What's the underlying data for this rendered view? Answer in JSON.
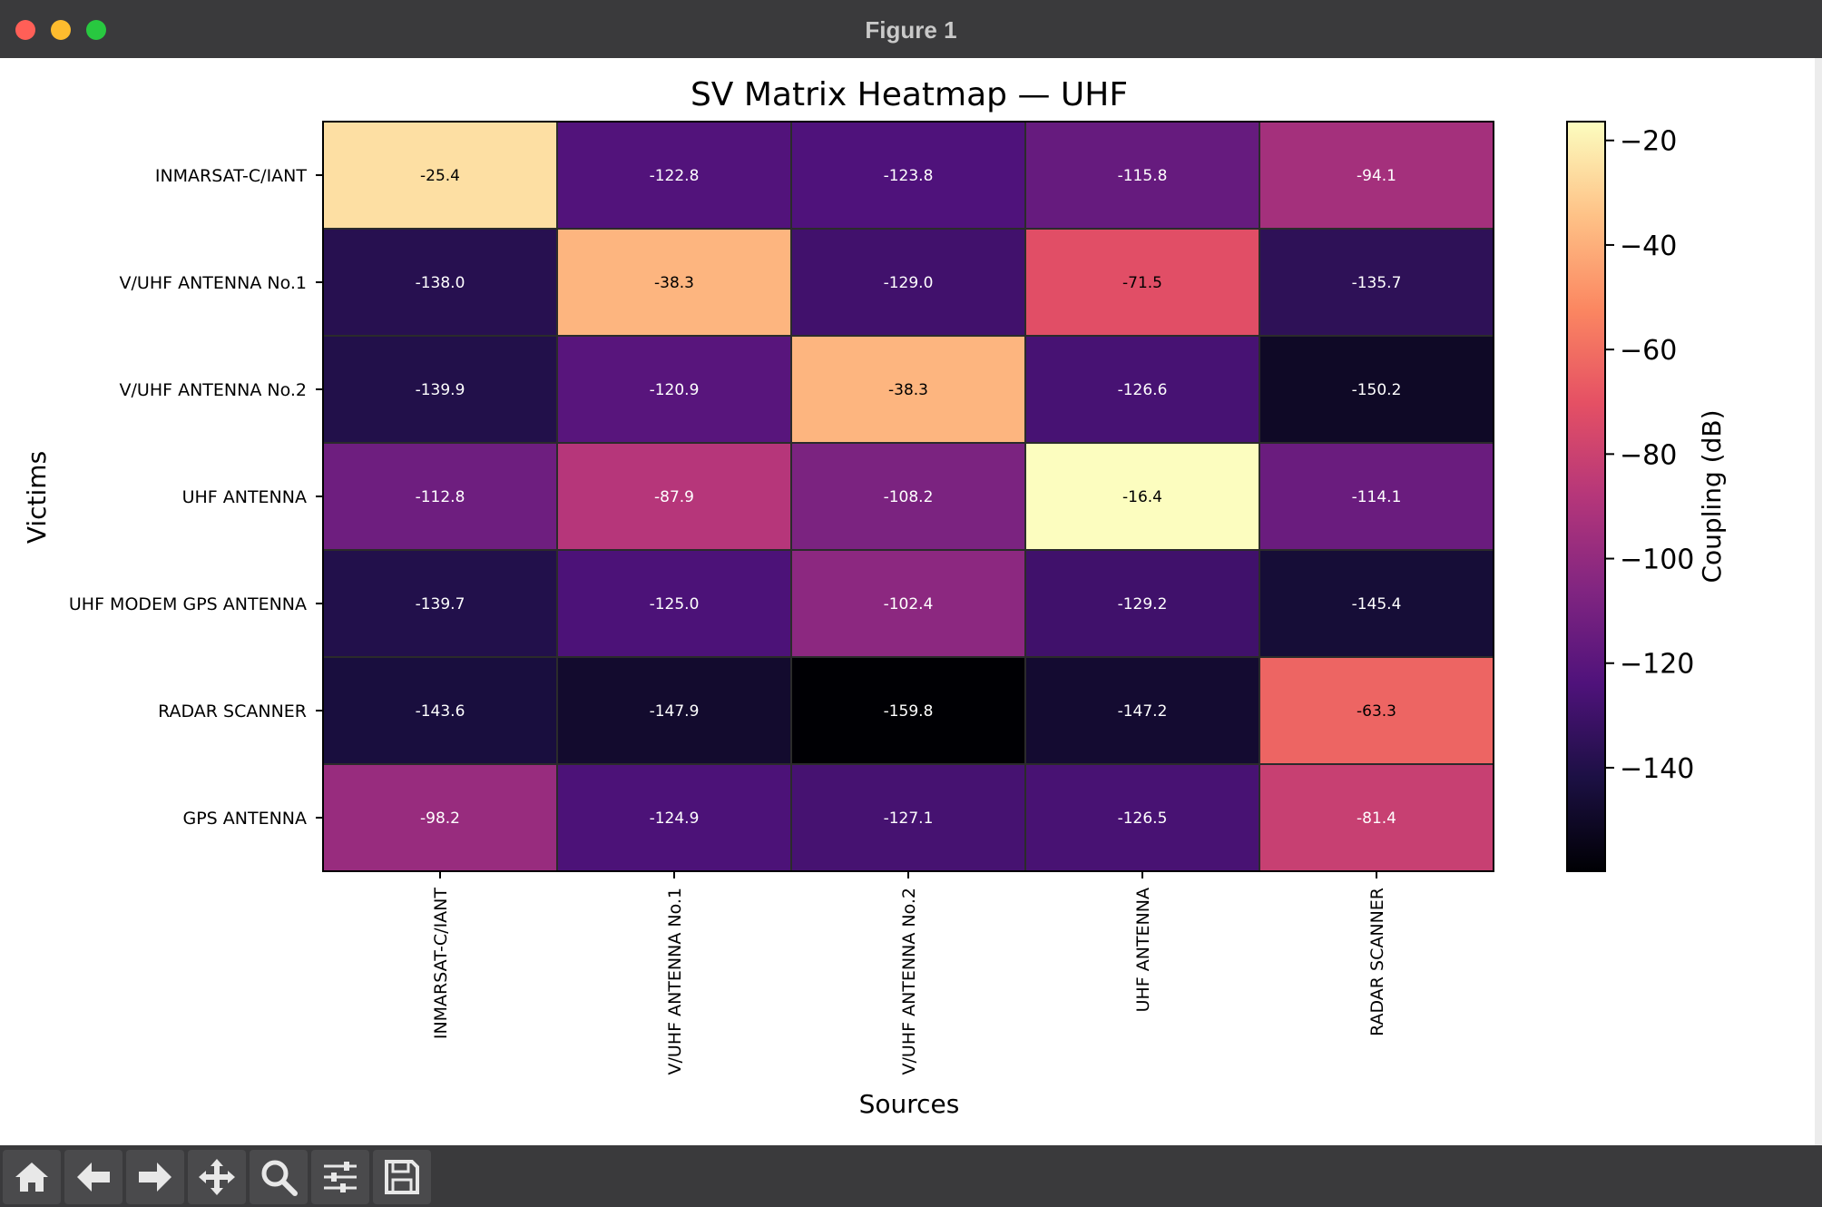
{
  "window": {
    "title": "Figure 1"
  },
  "toolbar": {
    "buttons": [
      {
        "name": "home-button",
        "icon": "home-icon"
      },
      {
        "name": "back-button",
        "icon": "arrow-left-icon"
      },
      {
        "name": "forward-button",
        "icon": "arrow-right-icon"
      },
      {
        "name": "pan-button",
        "icon": "move-icon"
      },
      {
        "name": "zoom-button",
        "icon": "magnifier-icon"
      },
      {
        "name": "configure-subplots-button",
        "icon": "sliders-icon"
      },
      {
        "name": "save-button",
        "icon": "floppy-disk-icon"
      }
    ]
  },
  "chart_data": {
    "type": "heatmap",
    "title": "SV Matrix Heatmap — UHF",
    "xlabel": "Sources",
    "ylabel": "Victims",
    "x_categories": [
      "INMARSAT-C/IANT",
      "V/UHF ANTENNA No.1",
      "V/UHF ANTENNA No.2",
      "UHF ANTENNA",
      "RADAR SCANNER"
    ],
    "y_categories": [
      "INMARSAT-C/IANT",
      "V/UHF ANTENNA No.1",
      "V/UHF ANTENNA No.2",
      "UHF ANTENNA",
      "UHF MODEM GPS ANTENNA",
      "RADAR SCANNER",
      "GPS ANTENNA"
    ],
    "values": [
      [
        -25.4,
        -122.8,
        -123.8,
        -115.8,
        -94.1
      ],
      [
        -138.0,
        -38.3,
        -129.0,
        -71.5,
        -135.7
      ],
      [
        -139.9,
        -120.9,
        -38.3,
        -126.6,
        -150.2
      ],
      [
        -112.8,
        -87.9,
        -108.2,
        -16.4,
        -114.1
      ],
      [
        -139.7,
        -125.0,
        -102.4,
        -129.2,
        -145.4
      ],
      [
        -143.6,
        -147.9,
        -159.8,
        -147.2,
        -63.3
      ],
      [
        -98.2,
        -124.9,
        -127.1,
        -126.5,
        -81.4
      ]
    ],
    "colormap": "magma",
    "colorbar": {
      "label": "Coupling (dB)",
      "vmin": -159.8,
      "vmax": -16.4,
      "ticks": [
        -20,
        -40,
        -60,
        -80,
        -100,
        -120,
        -140
      ],
      "tick_labels": [
        "−20",
        "−40",
        "−60",
        "−80",
        "−100",
        "−120",
        "−140"
      ]
    },
    "annotations": true,
    "grid": false
  }
}
